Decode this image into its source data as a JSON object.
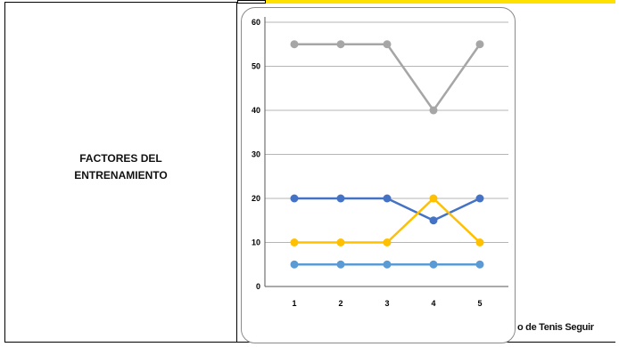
{
  "left_label": "FACTORES DEL ENTRENAMIENTO",
  "footer_text": "o de Tenis Seguir",
  "chart_data": {
    "type": "line",
    "title": "",
    "xlabel": "",
    "ylabel": "",
    "categories": [
      "1",
      "2",
      "3",
      "4",
      "5"
    ],
    "ylim": [
      0,
      60
    ],
    "yticks": [
      0,
      10,
      20,
      30,
      40,
      50,
      60
    ],
    "grid": true,
    "series": [
      {
        "color": "#a6a6a6",
        "values": [
          55,
          55,
          55,
          40,
          55
        ]
      },
      {
        "color": "#4472c4",
        "values": [
          20,
          20,
          20,
          15,
          20
        ]
      },
      {
        "color": "#ffc000",
        "values": [
          10,
          10,
          10,
          20,
          10
        ]
      },
      {
        "color": "#5b9bd5",
        "values": [
          5,
          5,
          5,
          5,
          5
        ]
      }
    ]
  }
}
